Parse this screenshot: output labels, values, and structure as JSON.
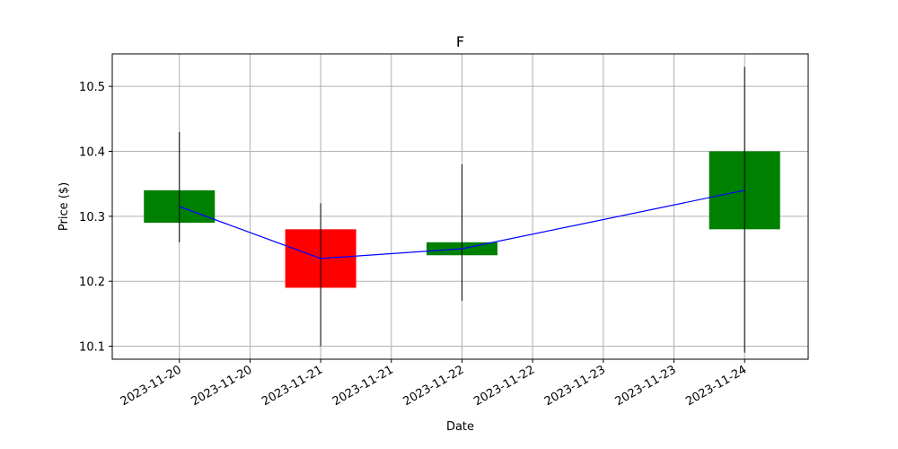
{
  "chart_data": {
    "type": "candlestick",
    "title": "F",
    "xlabel": "Date",
    "ylabel": "Price ($)",
    "ylim": [
      10.08,
      10.55
    ],
    "y_ticks": [
      10.1,
      10.2,
      10.3,
      10.4,
      10.5
    ],
    "x_range": [
      -0.95,
      8.9
    ],
    "x_ticks": [
      {
        "pos": 0,
        "label": "2023-11-20"
      },
      {
        "pos": 1,
        "label": "2023-11-20"
      },
      {
        "pos": 2,
        "label": "2023-11-21"
      },
      {
        "pos": 3,
        "label": "2023-11-21"
      },
      {
        "pos": 4,
        "label": "2023-11-22"
      },
      {
        "pos": 5,
        "label": "2023-11-22"
      },
      {
        "pos": 6,
        "label": "2023-11-23"
      },
      {
        "pos": 7,
        "label": "2023-11-23"
      },
      {
        "pos": 8,
        "label": "2023-11-24"
      }
    ],
    "grid": true,
    "candles": [
      {
        "date": "2023-11-20",
        "pos": 0,
        "open": 10.29,
        "close": 10.34,
        "high": 10.43,
        "low": 10.26
      },
      {
        "date": "2023-11-21",
        "pos": 2,
        "open": 10.28,
        "close": 10.19,
        "high": 10.32,
        "low": 10.1
      },
      {
        "date": "2023-11-22",
        "pos": 4,
        "open": 10.24,
        "close": 10.26,
        "high": 10.38,
        "low": 10.17
      },
      {
        "date": "2023-11-24",
        "pos": 8,
        "open": 10.28,
        "close": 10.4,
        "high": 10.53,
        "low": 10.09
      }
    ],
    "line_series": {
      "x": [
        0,
        2,
        4,
        8
      ],
      "y": [
        10.315,
        10.235,
        10.25,
        10.34
      ]
    },
    "colors": {
      "up": "#008000",
      "down": "#ff0000",
      "line": "#0000ff",
      "wick": "#000000",
      "grid": "#b0b0b0"
    }
  }
}
